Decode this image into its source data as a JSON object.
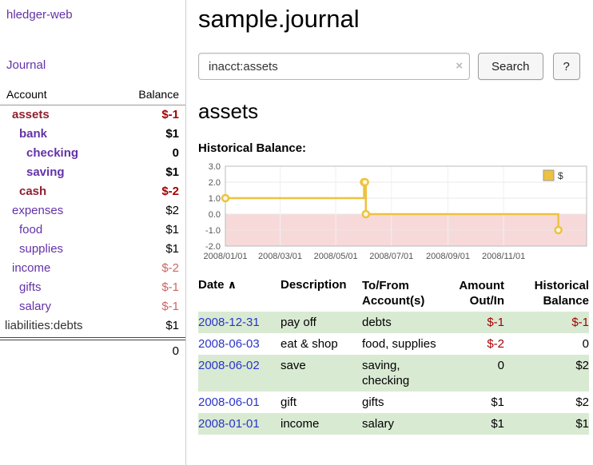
{
  "colors": {
    "purple": "#6332a8",
    "maroon": "#8f2030",
    "red": "#a40000",
    "softred": "#cc6666",
    "blue": "#2a35c9",
    "rowgreen": "#d9ead3",
    "gold": "#edc240",
    "pink": "#f8d9d9",
    "divider": "#cccccc",
    "grid": "#e8e8e8",
    "axis": "#545454"
  },
  "app": {
    "title": "hledger-web",
    "nav_journal": "Journal"
  },
  "sidebar": {
    "header": {
      "account": "Account",
      "balance": "Balance"
    },
    "accounts": [
      {
        "name": "assets",
        "balance": "$-1",
        "depth": 1,
        "bold": true,
        "negative": true
      },
      {
        "name": "bank",
        "balance": "$1",
        "depth": 2,
        "bold": true
      },
      {
        "name": "checking",
        "balance": "0",
        "depth": 3,
        "bold": true
      },
      {
        "name": "saving",
        "balance": "$1",
        "depth": 3,
        "bold": true
      },
      {
        "name": "cash",
        "balance": "$-2",
        "depth": 2,
        "bold": true,
        "negative": true
      },
      {
        "name": "expenses",
        "balance": "$2",
        "depth": 1
      },
      {
        "name": "food",
        "balance": "$1",
        "depth": 2
      },
      {
        "name": "supplies",
        "balance": "$1",
        "depth": 2
      },
      {
        "name": "income",
        "balance": "$-2",
        "depth": 1,
        "soft_negative": true
      },
      {
        "name": "gifts",
        "balance": "$-1",
        "depth": 2,
        "soft_negative": true
      },
      {
        "name": "salary",
        "balance": "$-1",
        "depth": 2,
        "soft_negative": true
      },
      {
        "name": "liabilities:debts",
        "balance": "$1",
        "depth": 0,
        "muted": true
      }
    ],
    "total": "0"
  },
  "main": {
    "title": "sample.journal",
    "search": {
      "value": "inacct:assets",
      "clear_icon": "×",
      "button_label": "Search",
      "help_label": "?"
    },
    "account_heading": "assets",
    "chart_label": "Historical Balance:"
  },
  "chart_data": {
    "type": "line",
    "step": true,
    "title": "Historical Balance",
    "x_domain": [
      "2008-01-01",
      "2009-01-31"
    ],
    "x_ticks": [
      "2008/01/01",
      "2008/03/01",
      "2008/05/01",
      "2008/07/01",
      "2008/09/01",
      "2008/11/01"
    ],
    "y_ticks": [
      "3.0",
      "2.0",
      "1.0",
      "0.0",
      "-1.0",
      "-2.0"
    ],
    "ylim": [
      -2,
      3
    ],
    "series": [
      {
        "name": "$",
        "color": "#edc240",
        "points": [
          [
            "2008-01-01",
            1
          ],
          [
            "2008-06-01",
            2
          ],
          [
            "2008-06-02",
            2
          ],
          [
            "2008-06-03",
            0
          ],
          [
            "2008-12-31",
            -1
          ]
        ]
      }
    ],
    "negative_region_color": "#f8d9d9",
    "legend": {
      "label": "$",
      "position": "top-right"
    }
  },
  "register": {
    "headers": {
      "date": "Date",
      "sort_icon": "∧",
      "description": "Description",
      "account_line1": "To/From",
      "account_line2": "Account(s)",
      "amount_line1": "Amount",
      "amount_line2": "Out/In",
      "balance_line1": "Historical",
      "balance_line2": "Balance"
    },
    "rows": [
      {
        "date": "2008-12-31",
        "description": "pay off",
        "accounts": "debts",
        "amount": "$-1",
        "balance": "$-1",
        "amount_neg": true,
        "balance_neg": true
      },
      {
        "date": "2008-06-03",
        "description": "eat & shop",
        "accounts": "food, supplies",
        "amount": "$-2",
        "balance": "0",
        "amount_neg": true,
        "balance_neg": false
      },
      {
        "date": "2008-06-02",
        "description": "save",
        "accounts": "saving, checking",
        "amount": "0",
        "balance": "$2",
        "amount_neg": false,
        "balance_neg": false
      },
      {
        "date": "2008-06-01",
        "description": "gift",
        "accounts": "gifts",
        "amount": "$1",
        "balance": "$2",
        "amount_neg": false,
        "balance_neg": false
      },
      {
        "date": "2008-01-01",
        "description": "income",
        "accounts": "salary",
        "amount": "$1",
        "balance": "$1",
        "amount_neg": false,
        "balance_neg": false
      }
    ]
  }
}
